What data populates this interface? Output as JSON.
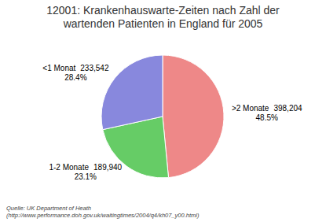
{
  "chart_data": {
    "type": "pie",
    "title": "12001: Krankenhauswarte-Zeiten nach Zahl der\nwartenden Patienten in England für 2005",
    "categories": [
      ">2 Monate",
      "1-2 Monate",
      "<1 Monat"
    ],
    "values": [
      398204,
      189940,
      233542
    ],
    "value_labels": [
      "398,204\n48.5%",
      "189,940\n23.1%",
      "233,542\n28.4%"
    ],
    "colors": [
      "#ee8888",
      "#66cc66",
      "#8888dd"
    ],
    "data_labels": true,
    "annotations": [
      "Quelle: UK Department of Heath\n(http://www.performance.doh.gov.uk/waitingtimes/2004/q4/kh07_y00.html)"
    ]
  }
}
